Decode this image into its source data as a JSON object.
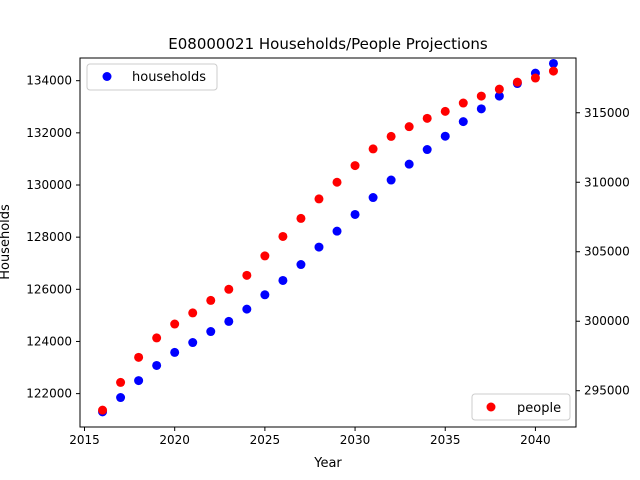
{
  "chart_data": {
    "type": "scatter",
    "title": "E08000021 Households/People Projections",
    "xlabel": "Year",
    "ylabel": "Households",
    "y2label": "",
    "x": [
      2016,
      2017,
      2018,
      2019,
      2020,
      2021,
      2022,
      2023,
      2024,
      2025,
      2026,
      2027,
      2028,
      2029,
      2030,
      2031,
      2032,
      2033,
      2034,
      2035,
      2036,
      2037,
      2038,
      2039,
      2040,
      2041
    ],
    "xlim": [
      2014.75,
      2042.25
    ],
    "ylim": [
      120720,
      134870
    ],
    "y2lim": [
      292390,
      318940
    ],
    "x_ticks": [
      2015,
      2020,
      2025,
      2030,
      2035,
      2040
    ],
    "y_ticks": [
      122000,
      124000,
      126000,
      128000,
      130000,
      132000,
      134000
    ],
    "y2_ticks": [
      295000,
      300000,
      305000,
      310000,
      315000
    ],
    "grid": false,
    "series": [
      {
        "name": "households",
        "axis": "left",
        "color": "#0000ff",
        "legend_position": "upper left",
        "values": [
          121300,
          121850,
          122500,
          123080,
          123580,
          123960,
          124380,
          124770,
          125240,
          125790,
          126340,
          126950,
          127620,
          128230,
          128870,
          129520,
          130190,
          130800,
          131360,
          131870,
          132430,
          132920,
          133410,
          133890,
          134290,
          134660
        ]
      },
      {
        "name": "people",
        "axis": "right",
        "color": "#ff0000",
        "legend_position": "lower right",
        "values": [
          293600,
          295600,
          297400,
          298800,
          299800,
          300600,
          301500,
          302300,
          303300,
          304700,
          306100,
          307400,
          308800,
          310000,
          311200,
          312400,
          313300,
          314000,
          314600,
          315100,
          315700,
          316200,
          316700,
          317200,
          317500,
          318000
        ]
      }
    ]
  }
}
